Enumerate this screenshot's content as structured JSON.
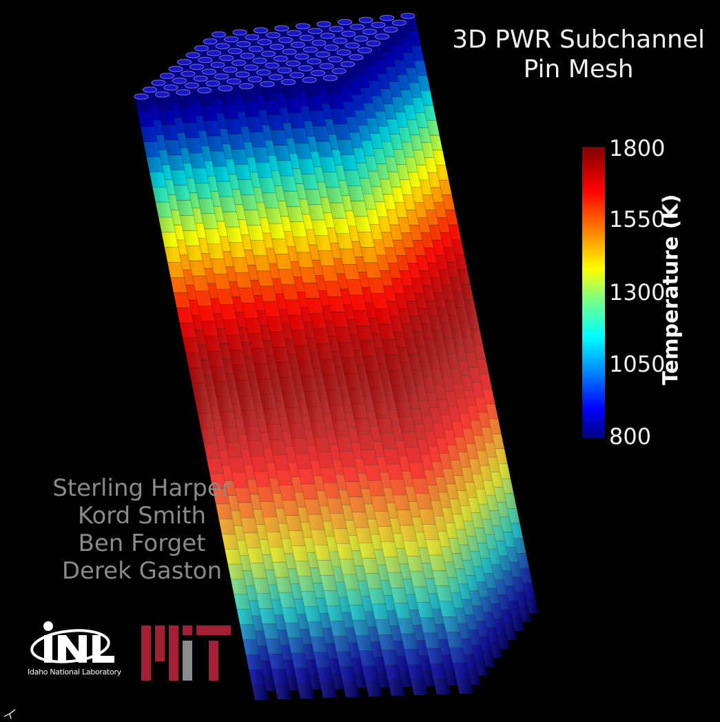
{
  "title": {
    "line1": "3D PWR Subchannel",
    "line2": "Pin Mesh"
  },
  "colorbar": {
    "label": "Temperature (K)",
    "ticks": [
      "1800",
      "1550",
      "1300",
      "1050",
      "800"
    ],
    "range": [
      800,
      1800
    ],
    "colormap": [
      "#00007f",
      "#0000ff",
      "#0080ff",
      "#00ffff",
      "#7fff7f",
      "#ffff00",
      "#ff8c00",
      "#ff0000",
      "#800000"
    ]
  },
  "credits": [
    "Sterling Harper",
    "Kord Smith",
    "Ben Forget",
    "Derek Gaston"
  ],
  "logos": {
    "inl_caption": "Idaho National Laboratory",
    "inl_wordmark": "INL",
    "mit_wordmark": "MIT",
    "mit_colors": [
      "#a31f34",
      "#8a8b8c"
    ]
  },
  "colors": {
    "background": "#000000",
    "title_text": "#f2f2f2",
    "credit_text": "#8a8a8a"
  }
}
